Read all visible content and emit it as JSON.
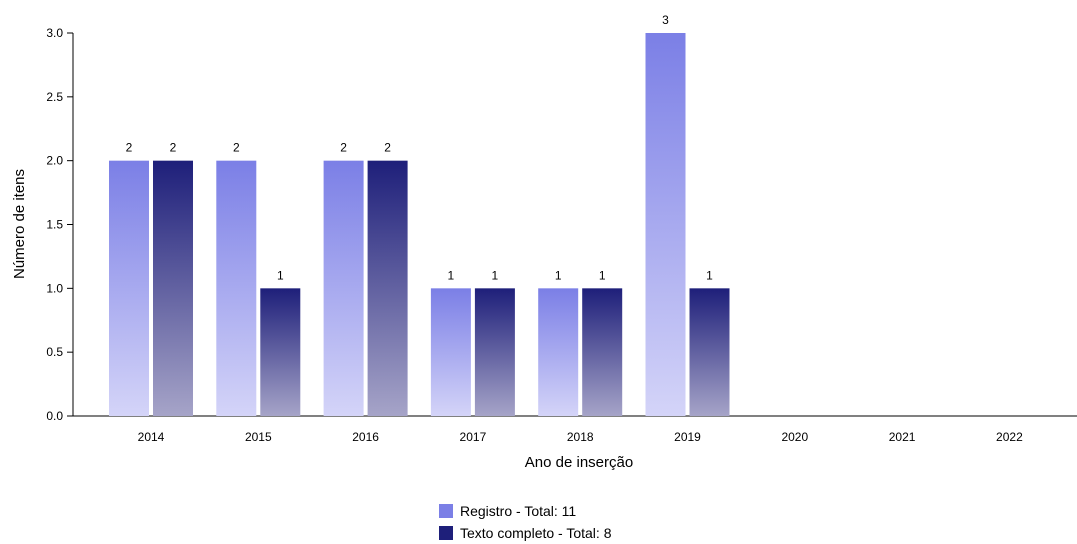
{
  "chart_data": {
    "type": "bar",
    "categories": [
      "2014",
      "2015",
      "2016",
      "2017",
      "2018",
      "2019",
      "2020",
      "2021",
      "2022"
    ],
    "series": [
      {
        "name": "Registro",
        "values": [
          2,
          2,
          2,
          1,
          1,
          3,
          null,
          null,
          null
        ],
        "color": "#7b7fe6",
        "color_light": "#d4d4f8"
      },
      {
        "name": "Texto completo",
        "values": [
          2,
          1,
          2,
          1,
          1,
          1,
          null,
          null,
          null
        ],
        "color": "#1e1f7a",
        "color_light": "#a6a4c8"
      }
    ],
    "legend_labels": [
      "Registro - Total: 11",
      "Texto completo - Total: 8"
    ],
    "legend_position": "bottom-center",
    "y_ticks": [
      "0.0",
      "0.5",
      "1.0",
      "1.5",
      "2.0",
      "2.5",
      "3.0"
    ],
    "xlabel": "Ano de inserção",
    "ylabel": "Número de itens",
    "ylim": [
      0,
      3
    ],
    "grid": false
  }
}
